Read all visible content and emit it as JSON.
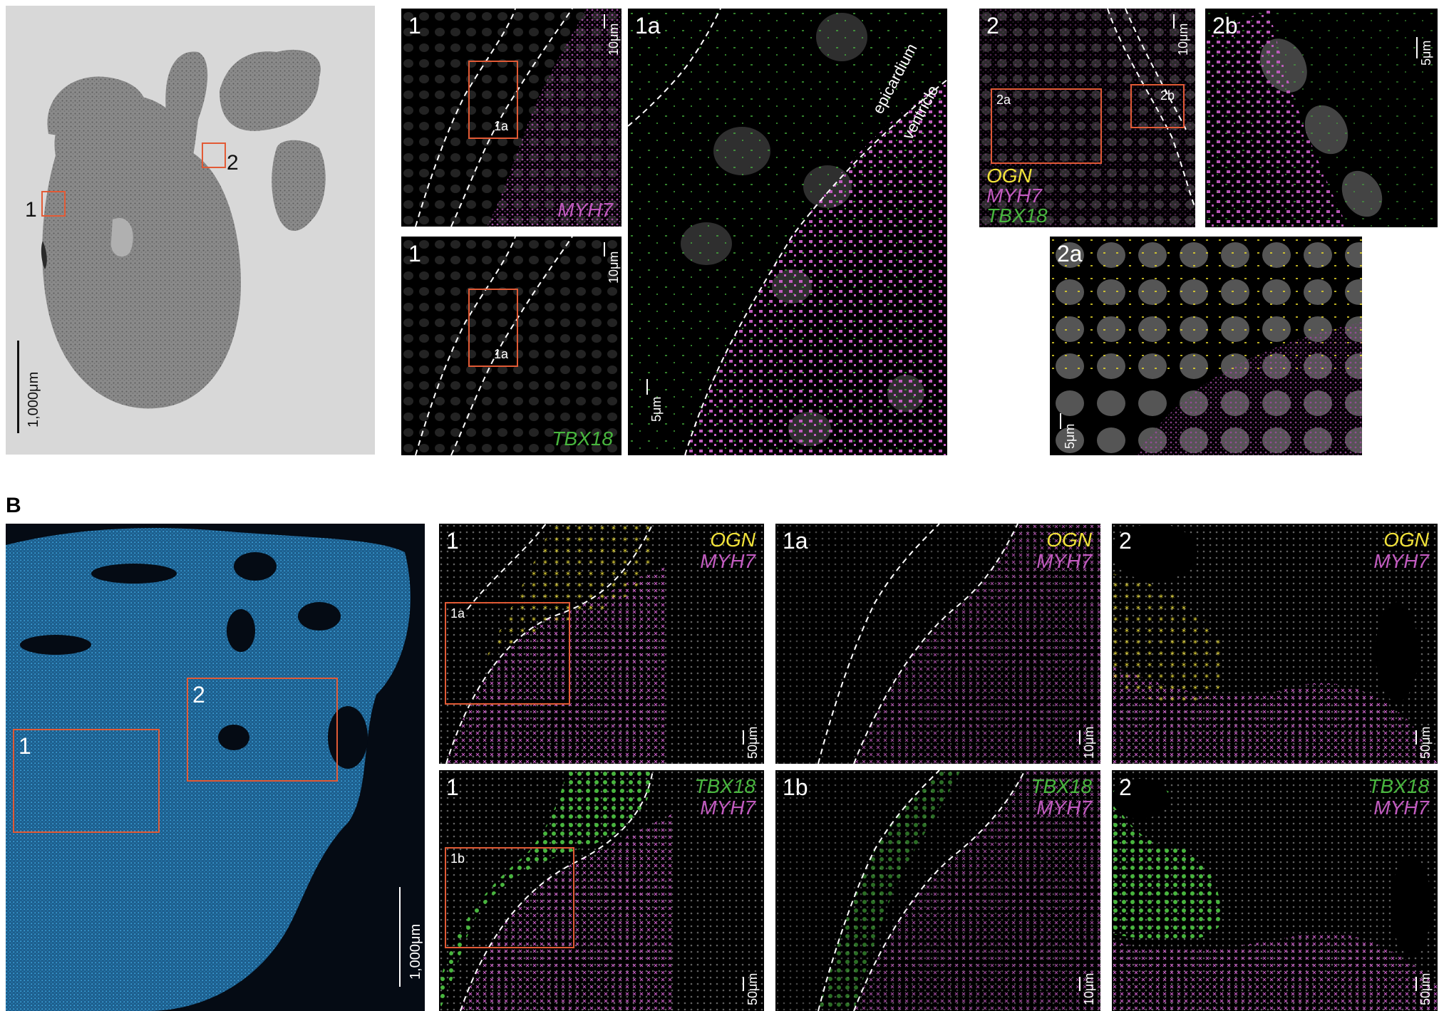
{
  "section_b_label": "B",
  "panel_a": {
    "overview": {
      "region1": "1",
      "region2": "2",
      "scale": "1,000μm"
    },
    "p1_top": {
      "label": "1",
      "gene": "MYH7",
      "scale": "10μm",
      "inset": "1a"
    },
    "p1_bottom": {
      "label": "1",
      "gene": "TBX18",
      "scale": "10μm",
      "inset": "1a"
    },
    "p1a": {
      "label": "1a",
      "scale": "5μm",
      "epicardium": "epicardium",
      "ventricle": "ventricle"
    },
    "p2": {
      "label": "2",
      "inset_a": "2a",
      "inset_b": "2b",
      "scale": "10μm",
      "genes": [
        "OGN",
        "MYH7",
        "TBX18"
      ]
    },
    "p2b": {
      "label": "2b",
      "scale": "5μm"
    },
    "p2a": {
      "label": "2a",
      "scale": "5μm"
    }
  },
  "panel_b": {
    "overview": {
      "region1": "1",
      "region2": "2",
      "scale": "1,000μm"
    },
    "r1_1": {
      "label": "1",
      "inset": "1a",
      "gene1": "OGN",
      "gene2": "MYH7",
      "scale": "50μm"
    },
    "r1_1a": {
      "label": "1a",
      "gene1": "OGN",
      "gene2": "MYH7",
      "scale": "10μm"
    },
    "r1_2": {
      "label": "2",
      "gene1": "OGN",
      "gene2": "MYH7",
      "scale": "50μm"
    },
    "r2_1": {
      "label": "1",
      "inset": "1b",
      "gene1": "TBX18",
      "gene2": "MYH7",
      "scale": "50μm"
    },
    "r2_1b": {
      "label": "1b",
      "gene1": "TBX18",
      "gene2": "MYH7",
      "scale": "10μm"
    },
    "r2_2": {
      "label": "2",
      "gene1": "TBX18",
      "gene2": "MYH7",
      "scale": "50μm"
    }
  },
  "colors": {
    "ogn": "#f2e33a",
    "myh7": "#c25bc0",
    "tbx18": "#48b63e",
    "box": "#e25a35",
    "dapi_blue": "#2c9bd6"
  }
}
